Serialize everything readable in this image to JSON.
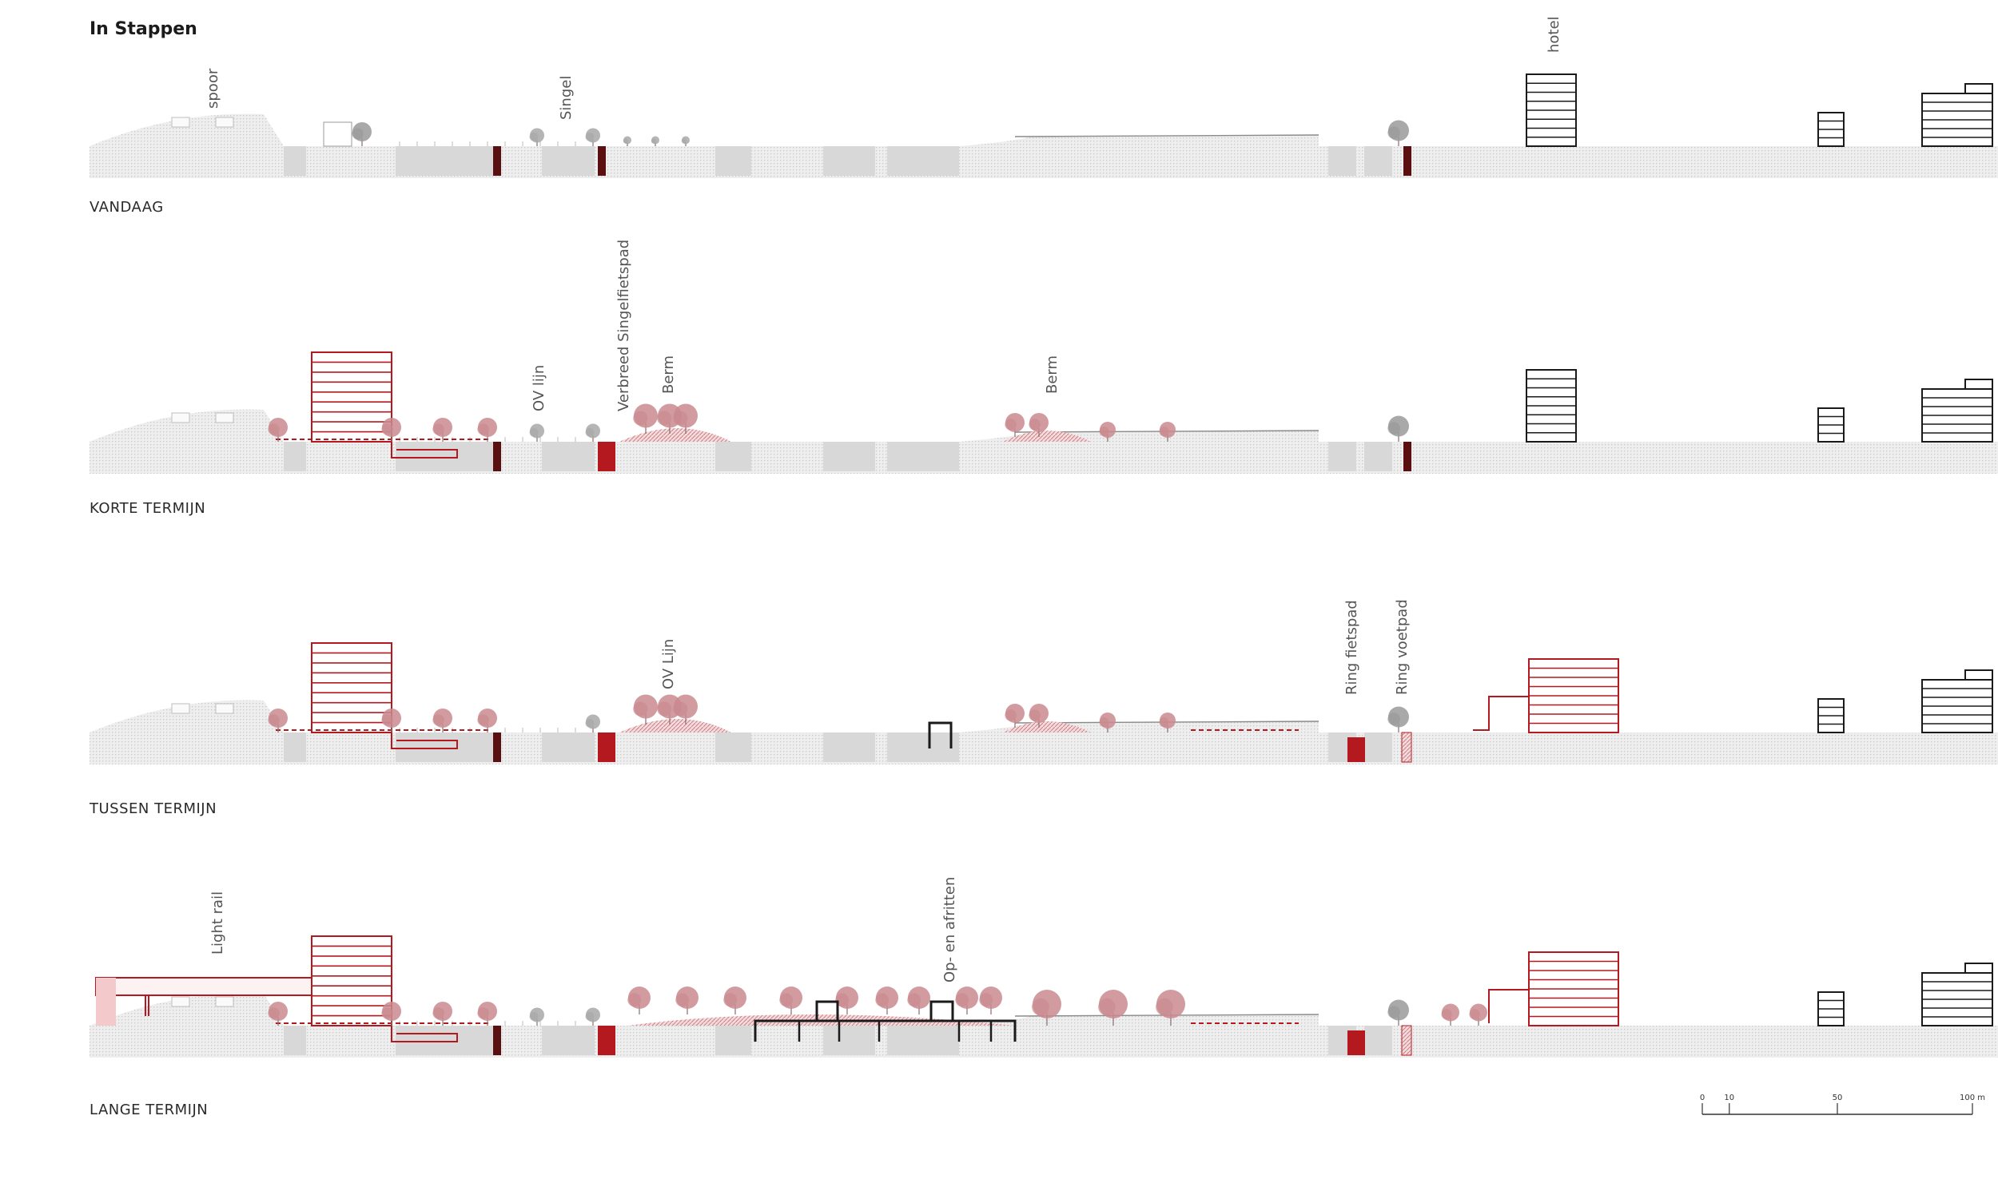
{
  "title": "In Stappen",
  "sections": [
    {
      "stage": "VANDAAG",
      "labels": [
        "spoor",
        "Singel",
        "hotel"
      ]
    },
    {
      "stage": "KORTE TERMIJN",
      "labels": [
        "OV lijn",
        "Verbreed Singelfietspad",
        "Berm",
        "Berm"
      ]
    },
    {
      "stage": "TUSSEN TERMIJN",
      "labels": [
        "OV Lijn",
        "Ring fietspad",
        "Ring voetpad"
      ]
    },
    {
      "stage": "LANGE TERMIJN",
      "labels": [
        "Light rail",
        "Op- en afritten"
      ]
    }
  ],
  "scale_bar": {
    "ticks": [
      "0",
      "10",
      "50",
      "100 m"
    ]
  },
  "colors": {
    "new_red": "#b3191f",
    "dark_red": "#5a1010",
    "tree_pink": "#c98a8f",
    "ground_grey": "#dcdcdc",
    "building_black": "#1a1a1a"
  }
}
